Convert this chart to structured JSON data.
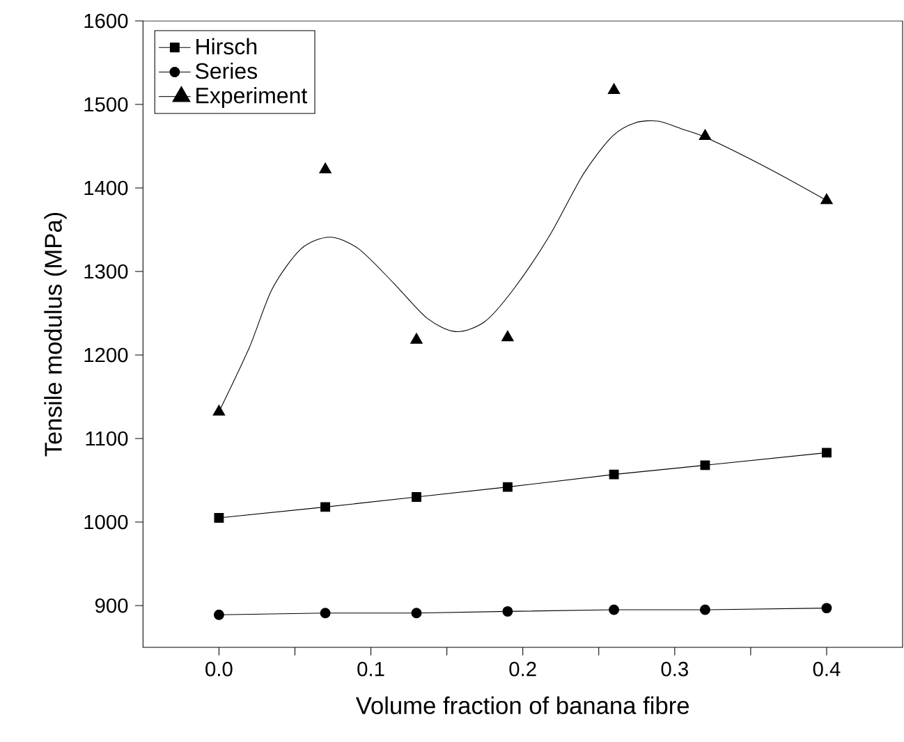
{
  "chart_data": {
    "type": "line",
    "xlabel": "Volume fraction of banana fibre",
    "ylabel": "Tensile modulus (MPa)",
    "xlim": [
      -0.05,
      0.45
    ],
    "ylim": [
      850,
      1600
    ],
    "xticks": [
      {
        "value": 0,
        "label": "0.0"
      },
      {
        "value": 0.05,
        "label": null
      },
      {
        "value": 0.1,
        "label": "0.1"
      },
      {
        "value": 0.15,
        "label": null
      },
      {
        "value": 0.2,
        "label": "0.2"
      },
      {
        "value": 0.25,
        "label": null
      },
      {
        "value": 0.3,
        "label": "0.3"
      },
      {
        "value": 0.35,
        "label": null
      },
      {
        "value": 0.4,
        "label": "0.4"
      }
    ],
    "yticks": [
      900,
      1000,
      1100,
      1200,
      1300,
      1400,
      1500,
      1600
    ],
    "legend": "top left",
    "grid": false,
    "series": [
      {
        "name": "Hirsch",
        "marker": "square",
        "color": "#000000",
        "x": [
          0,
          0.07,
          0.13,
          0.19,
          0.26,
          0.32,
          0.4
        ],
        "values": [
          1005,
          1018,
          1030,
          1042,
          1057,
          1068,
          1083
        ]
      },
      {
        "name": "Series",
        "marker": "circle",
        "color": "#000000",
        "x": [
          0,
          0.07,
          0.13,
          0.19,
          0.26,
          0.32,
          0.4
        ],
        "values": [
          889,
          891,
          891,
          893,
          895,
          895,
          897
        ]
      },
      {
        "name": "Experiment",
        "type": "scatter",
        "marker": "triangle",
        "color": "#000000",
        "x": [
          0,
          0.07,
          0.13,
          0.19,
          0.26,
          0.32,
          0.4
        ],
        "values": [
          1132,
          1422,
          1218,
          1221,
          1517,
          1462,
          1385
        ]
      },
      {
        "type": "line",
        "marker": "none",
        "color": "#000000",
        "x": [
          0,
          0.02,
          0.035,
          0.054,
          0.073,
          0.092,
          0.115,
          0.137,
          0.156,
          0.175,
          0.194,
          0.217,
          0.24,
          0.259,
          0.274,
          0.289,
          0.304,
          0.321,
          0.361,
          0.4
        ],
        "values": [
          1132,
          1209,
          1279,
          1327,
          1341,
          1327,
          1286,
          1244,
          1228,
          1240,
          1279,
          1341,
          1417,
          1462,
          1478,
          1480,
          1471,
          1460,
          1424,
          1385
        ]
      }
    ]
  }
}
